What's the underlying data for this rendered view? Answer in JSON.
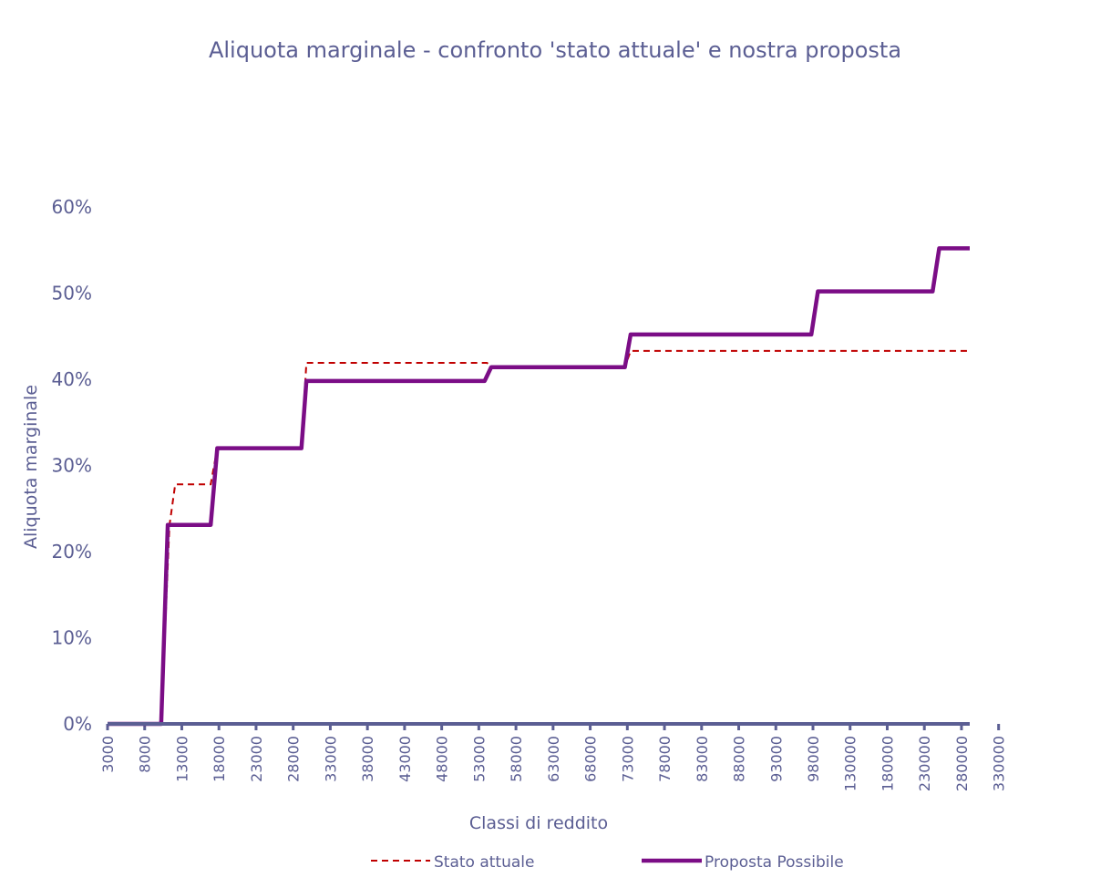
{
  "chart_data": {
    "type": "line",
    "title": "Aliquota marginale - confronto 'stato attuale' e nostra proposta",
    "xlabel": "Classi di reddito",
    "ylabel": "Aliquota marginale",
    "ylim": [
      0,
      0.6
    ],
    "yticks": [
      {
        "value": 0,
        "label": "0%"
      },
      {
        "value": 0.1,
        "label": "10%"
      },
      {
        "value": 0.2,
        "label": "20%"
      },
      {
        "value": 0.3,
        "label": "30%"
      },
      {
        "value": 0.4,
        "label": "40%"
      },
      {
        "value": 0.5,
        "label": "50%"
      },
      {
        "value": 0.6,
        "label": "60%"
      }
    ],
    "x_tick_labels": [
      "3000",
      "8000",
      "13000",
      "18000",
      "23000",
      "28000",
      "33000",
      "38000",
      "43000",
      "48000",
      "53000",
      "58000",
      "63000",
      "68000",
      "73000",
      "78000",
      "83000",
      "88000",
      "93000",
      "98000",
      "130000",
      "180000",
      "230000",
      "280000",
      "330000"
    ],
    "x_start": 0,
    "x_end": 104.5,
    "series": [
      {
        "name": "Stato attuale",
        "style": "dashed",
        "color": "#c00000",
        "points": [
          [
            0,
            0
          ],
          [
            6.5,
            0
          ],
          [
            7.5,
            0.23
          ],
          [
            8.2,
            0.278
          ],
          [
            12.5,
            0.278
          ],
          [
            13.3,
            0.32
          ],
          [
            23.5,
            0.32
          ],
          [
            24.1,
            0.419
          ],
          [
            46,
            0.419
          ],
          [
            46.5,
            0.414
          ],
          [
            62.7,
            0.414
          ],
          [
            63.4,
            0.433
          ],
          [
            104.5,
            0.433
          ]
        ]
      },
      {
        "name": "Proposta Possibile",
        "style": "solid",
        "color": "#7b0d86",
        "points": [
          [
            0,
            0
          ],
          [
            6.5,
            0
          ],
          [
            7.3,
            0.231
          ],
          [
            12.5,
            0.231
          ],
          [
            13.3,
            0.32
          ],
          [
            23.5,
            0.32
          ],
          [
            24.1,
            0.398
          ],
          [
            45.7,
            0.398
          ],
          [
            46.5,
            0.414
          ],
          [
            62.7,
            0.414
          ],
          [
            63.4,
            0.452
          ],
          [
            85.3,
            0.452
          ],
          [
            86.1,
            0.502
          ],
          [
            100,
            0.502
          ],
          [
            100.8,
            0.552
          ],
          [
            104.5,
            0.552
          ]
        ]
      }
    ],
    "legend_position": "bottom",
    "grid": false,
    "colors": {
      "text": "#5b5e93",
      "axis": "#5b5e93"
    }
  }
}
